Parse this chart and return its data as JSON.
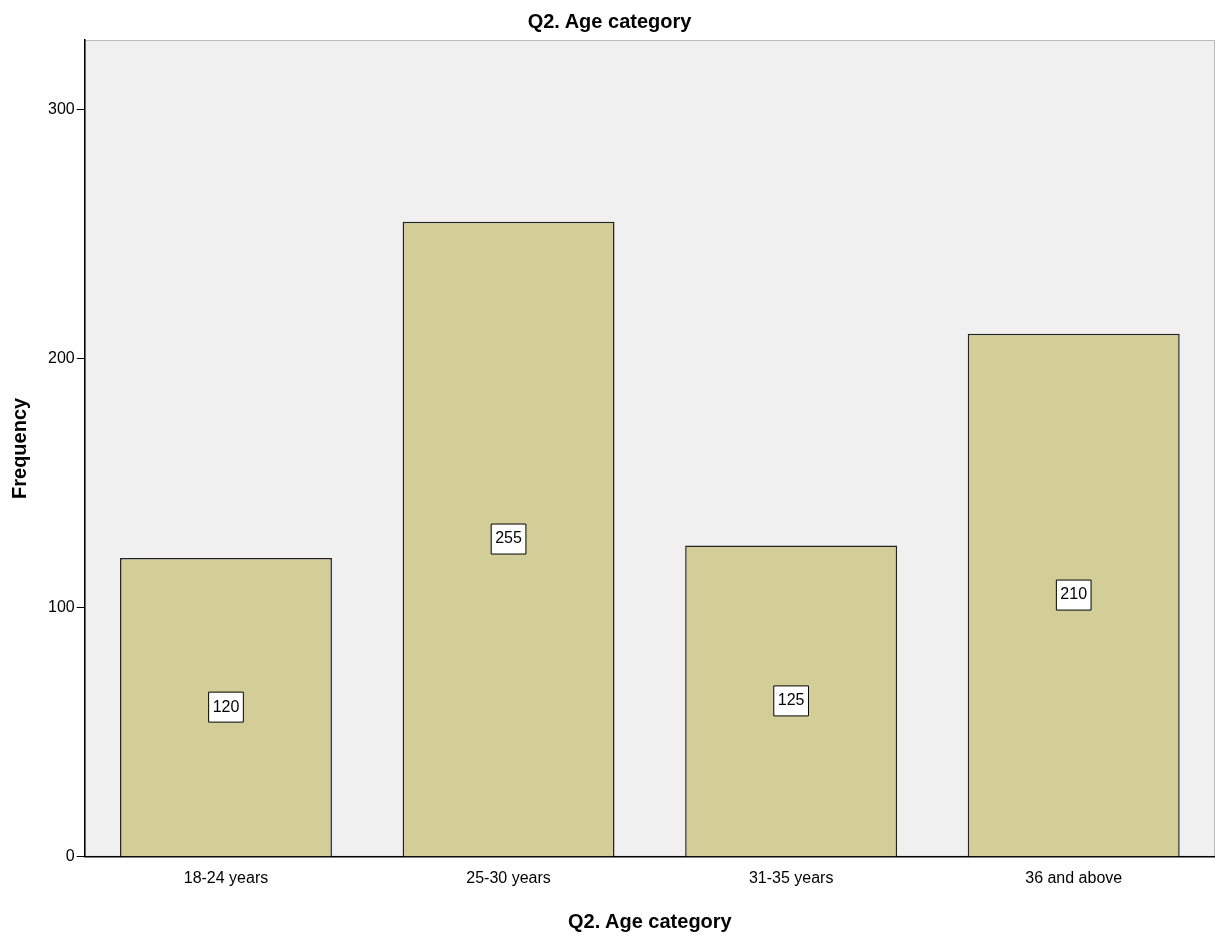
{
  "chart_data": {
    "type": "bar",
    "title": "Q2. Age category",
    "xlabel": "Q2. Age category",
    "ylabel": "Frequency",
    "categories": [
      "18-24 years",
      "25-30 years",
      "31-35 years",
      "36 and above"
    ],
    "values": [
      120,
      255,
      125,
      210
    ],
    "color": "#d3cd97",
    "ylim": [
      0,
      328
    ],
    "yticks": [
      0,
      100,
      200,
      300
    ],
    "grid": false,
    "legend": false,
    "data_labels": true
  }
}
